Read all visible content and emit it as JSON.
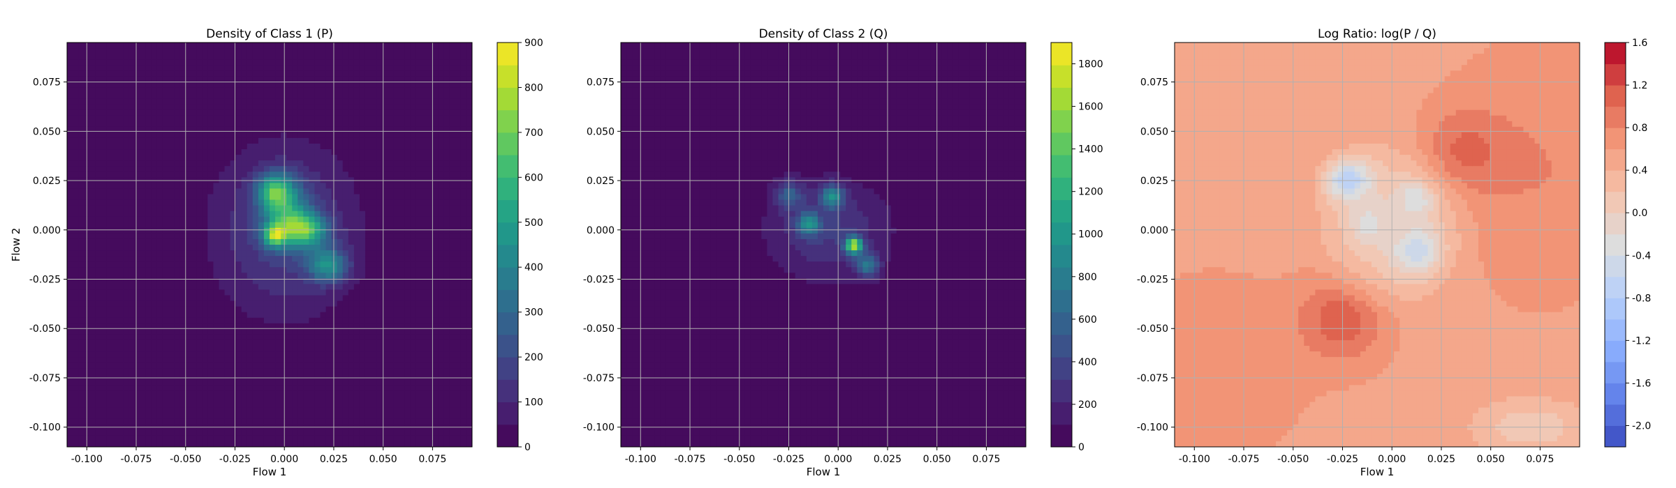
{
  "chart_data": [
    {
      "type": "heatmap",
      "title": "Density of Class 1 (P)",
      "xlabel": "Flow 1",
      "ylabel": "Flow 2",
      "xlim": [
        -0.11,
        0.095
      ],
      "ylim": [
        -0.11,
        0.095
      ],
      "xticks": [
        "-0.100",
        "-0.075",
        "-0.050",
        "-0.025",
        "0.000",
        "0.025",
        "0.050",
        "0.075"
      ],
      "yticks": [
        "-0.100",
        "-0.075",
        "-0.050",
        "-0.025",
        "0.000",
        "0.025",
        "0.050",
        "0.075"
      ],
      "grid": true,
      "colormap": "viridis",
      "colorbar": {
        "range": [
          0,
          900
        ],
        "ticks": [
          "0",
          "100",
          "200",
          "300",
          "400",
          "500",
          "600",
          "700",
          "800",
          "900"
        ]
      },
      "blobs": [
        {
          "x": 0.0,
          "y": 0.0,
          "sx": 0.025,
          "sy": 0.03,
          "value": 180
        },
        {
          "x": 0.01,
          "y": 0.0,
          "sx": 0.008,
          "sy": 0.006,
          "value": 520
        },
        {
          "x": -0.005,
          "y": 0.02,
          "sx": 0.006,
          "sy": 0.006,
          "value": 420
        },
        {
          "x": -0.005,
          "y": -0.003,
          "sx": 0.004,
          "sy": 0.004,
          "value": 500
        },
        {
          "x": 0.022,
          "y": -0.018,
          "sx": 0.007,
          "sy": 0.006,
          "value": 380
        },
        {
          "x": 0.0,
          "y": 0.01,
          "sx": 0.008,
          "sy": 0.01,
          "value": 330
        }
      ]
    },
    {
      "type": "heatmap",
      "title": "Density of Class 2 (Q)",
      "xlabel": "Flow 1",
      "ylabel": "",
      "xlim": [
        -0.11,
        0.095
      ],
      "ylim": [
        -0.11,
        0.095
      ],
      "xticks": [
        "-0.100",
        "-0.075",
        "-0.050",
        "-0.025",
        "0.000",
        "0.025",
        "0.050",
        "0.075"
      ],
      "yticks": [
        "-0.100",
        "-0.075",
        "-0.050",
        "-0.025",
        "0.000",
        "0.025",
        "0.050",
        "0.075"
      ],
      "grid": true,
      "colormap": "viridis",
      "colorbar": {
        "range": [
          0,
          1900
        ],
        "ticks": [
          "0",
          "200",
          "400",
          "600",
          "800",
          "1000",
          "1200",
          "1400",
          "1600",
          "1800"
        ]
      },
      "blobs": [
        {
          "x": -0.005,
          "y": 0.0,
          "sx": 0.022,
          "sy": 0.018,
          "value": 330
        },
        {
          "x": 0.008,
          "y": -0.008,
          "sx": 0.003,
          "sy": 0.003,
          "value": 1500
        },
        {
          "x": -0.003,
          "y": 0.017,
          "sx": 0.004,
          "sy": 0.004,
          "value": 800
        },
        {
          "x": -0.015,
          "y": 0.003,
          "sx": 0.004,
          "sy": 0.004,
          "value": 750
        },
        {
          "x": 0.015,
          "y": -0.018,
          "sx": 0.004,
          "sy": 0.004,
          "value": 650
        },
        {
          "x": -0.025,
          "y": 0.018,
          "sx": 0.005,
          "sy": 0.005,
          "value": 450
        }
      ]
    },
    {
      "type": "heatmap",
      "title": "Log Ratio: log(P / Q)",
      "xlabel": "Flow 1",
      "ylabel": "",
      "xlim": [
        -0.11,
        0.095
      ],
      "ylim": [
        -0.11,
        0.095
      ],
      "xticks": [
        "-0.100",
        "-0.075",
        "-0.050",
        "-0.025",
        "0.000",
        "0.025",
        "0.050",
        "0.075"
      ],
      "yticks": [
        "-0.100",
        "-0.075",
        "-0.050",
        "-0.025",
        "0.000",
        "0.025",
        "0.050",
        "0.075"
      ],
      "grid": true,
      "colormap": "coolwarm",
      "colorbar": {
        "range": [
          -2.2,
          1.6
        ],
        "ticks": [
          "-2.0",
          "-1.6",
          "-1.2",
          "-0.8",
          "-0.4",
          "0.0",
          "0.4",
          "0.8",
          "1.2",
          "1.6"
        ]
      },
      "baseline": 0.55,
      "blobs": [
        {
          "x": -0.022,
          "y": 0.025,
          "sx": 0.008,
          "sy": 0.007,
          "value": -1.3
        },
        {
          "x": 0.012,
          "y": -0.01,
          "sx": 0.008,
          "sy": 0.008,
          "value": -1.3
        },
        {
          "x": 0.012,
          "y": 0.015,
          "sx": 0.006,
          "sy": 0.006,
          "value": -0.9
        },
        {
          "x": -0.012,
          "y": 0.003,
          "sx": 0.006,
          "sy": 0.006,
          "value": -0.8
        },
        {
          "x": 0.0,
          "y": 0.005,
          "sx": 0.02,
          "sy": 0.025,
          "value": -0.5
        },
        {
          "x": -0.025,
          "y": -0.045,
          "sx": 0.015,
          "sy": 0.015,
          "value": 0.6
        },
        {
          "x": 0.035,
          "y": 0.04,
          "sx": 0.015,
          "sy": 0.015,
          "value": 0.45
        },
        {
          "x": 0.075,
          "y": 0.03,
          "sx": 0.03,
          "sy": 0.04,
          "value": 0.25
        },
        {
          "x": -0.09,
          "y": -0.07,
          "sx": 0.03,
          "sy": 0.03,
          "value": 0.2
        },
        {
          "x": 0.07,
          "y": -0.1,
          "sx": 0.02,
          "sy": 0.01,
          "value": -0.5
        }
      ]
    }
  ]
}
